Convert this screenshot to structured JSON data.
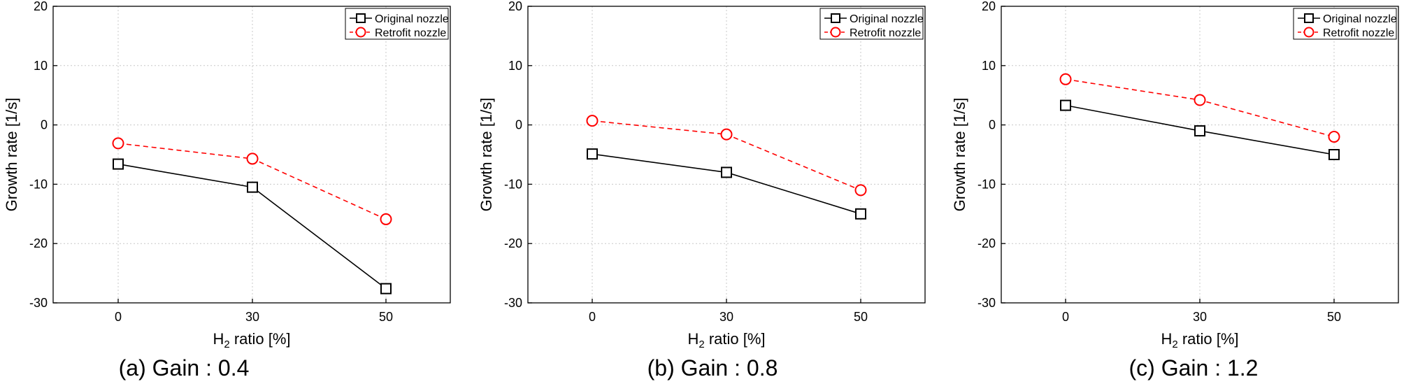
{
  "chart_data": [
    {
      "type": "line",
      "caption": "(a) Gain : 0.4",
      "categories": [
        "0",
        "30",
        "50"
      ],
      "xlabel_main": "H",
      "xlabel_sub": "2",
      "xlabel_rest": " ratio [%]",
      "ylabel": "Growth rate [1/s]",
      "ylim": [
        -30,
        20
      ],
      "yticks": [
        "20",
        "10",
        "0",
        "-10",
        "-20",
        "-30"
      ],
      "grid": true,
      "legend_position": "top-right",
      "series": [
        {
          "name": "Original nozzle",
          "color": "#000000",
          "marker": "square",
          "dash": false,
          "values": [
            -6.6,
            -10.5,
            -27.6
          ]
        },
        {
          "name": "Retrofit nozzle",
          "color": "#ff0000",
          "marker": "circle",
          "dash": true,
          "values": [
            -3.1,
            -5.7,
            -15.9
          ]
        }
      ]
    },
    {
      "type": "line",
      "caption": "(b) Gain : 0.8",
      "categories": [
        "0",
        "30",
        "50"
      ],
      "xlabel_main": "H",
      "xlabel_sub": "2",
      "xlabel_rest": " ratio [%]",
      "ylabel": "Growth rate [1/s]",
      "ylim": [
        -30,
        20
      ],
      "yticks": [
        "20",
        "10",
        "0",
        "-10",
        "-20",
        "-30"
      ],
      "grid": true,
      "legend_position": "top-right",
      "series": [
        {
          "name": "Original nozzle",
          "color": "#000000",
          "marker": "square",
          "dash": false,
          "values": [
            -4.9,
            -8.0,
            -15.0
          ]
        },
        {
          "name": "Retrofit nozzle",
          "color": "#ff0000",
          "marker": "circle",
          "dash": true,
          "values": [
            0.7,
            -1.6,
            -11.0
          ]
        }
      ]
    },
    {
      "type": "line",
      "caption": "(c) Gain : 1.2",
      "categories": [
        "0",
        "30",
        "50"
      ],
      "xlabel_main": "H",
      "xlabel_sub": "2",
      "xlabel_rest": " ratio [%]",
      "ylabel": "Growth rate [1/s]",
      "ylim": [
        -30,
        20
      ],
      "yticks": [
        "20",
        "10",
        "0",
        "-10",
        "-20",
        "-30"
      ],
      "grid": true,
      "legend_position": "top-right",
      "series": [
        {
          "name": "Original nozzle",
          "color": "#000000",
          "marker": "square",
          "dash": false,
          "values": [
            3.3,
            -1.0,
            -5.0
          ]
        },
        {
          "name": "Retrofit nozzle",
          "color": "#ff0000",
          "marker": "circle",
          "dash": true,
          "values": [
            7.7,
            4.2,
            -2.0
          ]
        }
      ]
    }
  ]
}
